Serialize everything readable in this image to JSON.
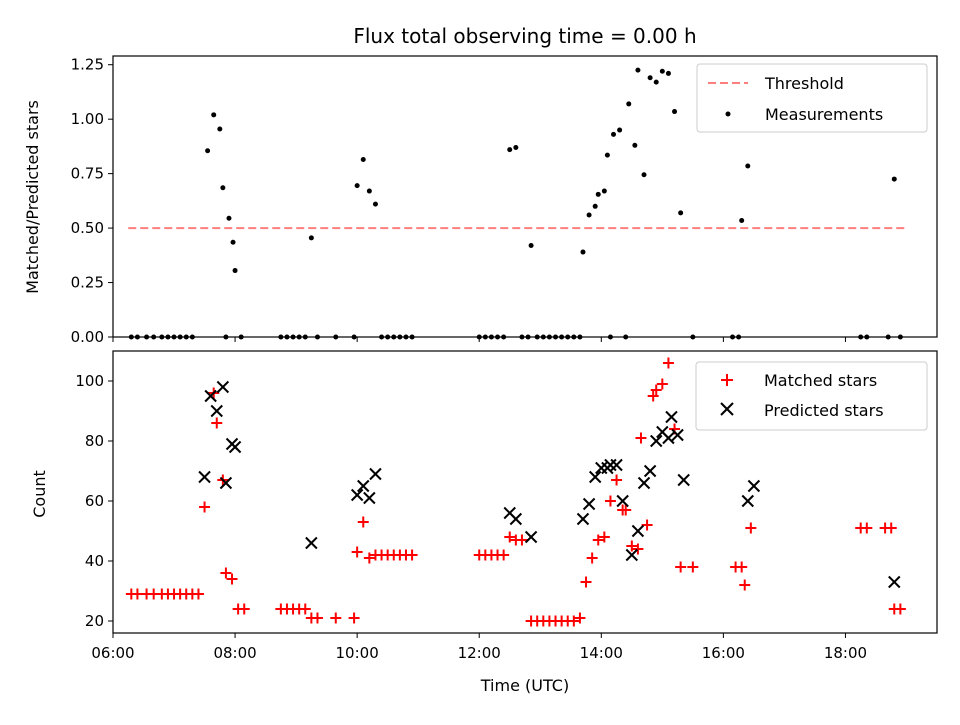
{
  "chart_data": [
    {
      "type": "scatter",
      "title": "Flux total observing time = 0.00 h",
      "xlabel": "",
      "ylabel": "Matched/Predicted stars",
      "xlim": [
        "06:00",
        "19:30"
      ],
      "ylim": [
        0,
        1.29
      ],
      "yticks": [
        0.0,
        0.25,
        0.5,
        0.75,
        1.0,
        1.25
      ],
      "ytick_labels": [
        "0.00",
        "0.25",
        "0.50",
        "0.75",
        "1.00",
        "1.25"
      ],
      "xticks": [
        "06:00",
        "08:00",
        "10:00",
        "12:00",
        "14:00",
        "16:00",
        "18:00"
      ],
      "legend_position": "top-right",
      "threshold": {
        "name": "Threshold",
        "value": 0.5,
        "x_start": "06:15",
        "x_end": "19:00",
        "color": "#ff7f7f",
        "style": "dashed"
      },
      "series": [
        {
          "name": "Measurements",
          "color": "#000000",
          "marker": "dot",
          "points": [
            [
              "06:18",
              0
            ],
            [
              "06:24",
              0
            ],
            [
              "06:33",
              0
            ],
            [
              "06:40",
              0
            ],
            [
              "06:48",
              0
            ],
            [
              "06:54",
              0
            ],
            [
              "07:00",
              0
            ],
            [
              "07:06",
              0
            ],
            [
              "07:12",
              0
            ],
            [
              "07:18",
              0
            ],
            [
              "07:33",
              0.855
            ],
            [
              "07:39",
              1.02
            ],
            [
              "07:45",
              0.955
            ],
            [
              "07:48",
              0.685
            ],
            [
              "07:51",
              0
            ],
            [
              "07:54",
              0.545
            ],
            [
              "07:58",
              0.435
            ],
            [
              "08:00",
              0.305
            ],
            [
              "08:06",
              0
            ],
            [
              "08:45",
              0
            ],
            [
              "08:51",
              0
            ],
            [
              "08:57",
              0
            ],
            [
              "09:03",
              0
            ],
            [
              "09:09",
              0
            ],
            [
              "09:15",
              0.455
            ],
            [
              "09:21",
              0
            ],
            [
              "09:39",
              0
            ],
            [
              "09:57",
              0
            ],
            [
              "10:00",
              0.695
            ],
            [
              "10:06",
              0.815
            ],
            [
              "10:12",
              0.67
            ],
            [
              "10:18",
              0.61
            ],
            [
              "10:24",
              0
            ],
            [
              "10:30",
              0
            ],
            [
              "10:36",
              0
            ],
            [
              "10:42",
              0
            ],
            [
              "10:48",
              0
            ],
            [
              "10:54",
              0
            ],
            [
              "12:00",
              0
            ],
            [
              "12:06",
              0
            ],
            [
              "12:12",
              0
            ],
            [
              "12:18",
              0
            ],
            [
              "12:24",
              0
            ],
            [
              "12:30",
              0.86
            ],
            [
              "12:36",
              0.87
            ],
            [
              "12:42",
              0
            ],
            [
              "12:48",
              0
            ],
            [
              "12:51",
              0.42
            ],
            [
              "12:57",
              0
            ],
            [
              "13:03",
              0
            ],
            [
              "13:09",
              0
            ],
            [
              "13:15",
              0
            ],
            [
              "13:21",
              0
            ],
            [
              "13:27",
              0
            ],
            [
              "13:33",
              0
            ],
            [
              "13:39",
              0
            ],
            [
              "13:42",
              0.39
            ],
            [
              "13:48",
              0.56
            ],
            [
              "13:54",
              0.6
            ],
            [
              "13:57",
              0.655
            ],
            [
              "14:03",
              0.67
            ],
            [
              "14:06",
              0.835
            ],
            [
              "14:09",
              0
            ],
            [
              "14:12",
              0.93
            ],
            [
              "14:18",
              0.95
            ],
            [
              "14:24",
              0
            ],
            [
              "14:27",
              1.07
            ],
            [
              "14:33",
              0.88
            ],
            [
              "14:36",
              1.225
            ],
            [
              "14:42",
              0.745
            ],
            [
              "14:48",
              1.19
            ],
            [
              "14:54",
              1.17
            ],
            [
              "15:00",
              1.22
            ],
            [
              "15:06",
              1.21
            ],
            [
              "15:12",
              1.035
            ],
            [
              "15:18",
              0.57
            ],
            [
              "15:30",
              0
            ],
            [
              "16:09",
              0
            ],
            [
              "16:15",
              0
            ],
            [
              "16:18",
              0.535
            ],
            [
              "16:24",
              0.785
            ],
            [
              "18:15",
              0
            ],
            [
              "18:21",
              0
            ],
            [
              "18:42",
              0
            ],
            [
              "18:48",
              0.725
            ],
            [
              "18:54",
              0
            ]
          ]
        }
      ]
    },
    {
      "type": "scatter",
      "title": "",
      "xlabel": "Time (UTC)",
      "ylabel": "Count",
      "xlim": [
        "06:00",
        "19:30"
      ],
      "ylim": [
        16,
        110
      ],
      "yticks": [
        20,
        40,
        60,
        80,
        100
      ],
      "xticks": [
        "06:00",
        "08:00",
        "10:00",
        "12:00",
        "14:00",
        "16:00",
        "18:00"
      ],
      "xtick_labels": [
        "06:00",
        "08:00",
        "10:00",
        "12:00",
        "14:00",
        "16:00",
        "18:00"
      ],
      "legend_position": "top-right",
      "series": [
        {
          "name": "Matched stars",
          "color": "#ff0000",
          "marker": "plus",
          "points": [
            [
              "06:18",
              29
            ],
            [
              "06:24",
              29
            ],
            [
              "06:33",
              29
            ],
            [
              "06:40",
              29
            ],
            [
              "06:48",
              29
            ],
            [
              "06:54",
              29
            ],
            [
              "07:00",
              29
            ],
            [
              "07:06",
              29
            ],
            [
              "07:12",
              29
            ],
            [
              "07:18",
              29
            ],
            [
              "07:24",
              29
            ],
            [
              "07:30",
              58
            ],
            [
              "07:39",
              96
            ],
            [
              "07:42",
              86
            ],
            [
              "07:48",
              67
            ],
            [
              "07:51",
              36
            ],
            [
              "07:57",
              34
            ],
            [
              "08:03",
              24
            ],
            [
              "08:09",
              24
            ],
            [
              "08:45",
              24
            ],
            [
              "08:51",
              24
            ],
            [
              "08:57",
              24
            ],
            [
              "09:03",
              24
            ],
            [
              "09:09",
              24
            ],
            [
              "09:15",
              21
            ],
            [
              "09:21",
              21
            ],
            [
              "09:39",
              21
            ],
            [
              "09:57",
              21
            ],
            [
              "10:00",
              43
            ],
            [
              "10:06",
              53
            ],
            [
              "10:12",
              41
            ],
            [
              "10:18",
              42
            ],
            [
              "10:24",
              42
            ],
            [
              "10:30",
              42
            ],
            [
              "10:36",
              42
            ],
            [
              "10:42",
              42
            ],
            [
              "10:48",
              42
            ],
            [
              "10:54",
              42
            ],
            [
              "12:00",
              42
            ],
            [
              "12:06",
              42
            ],
            [
              "12:12",
              42
            ],
            [
              "12:18",
              42
            ],
            [
              "12:24",
              42
            ],
            [
              "12:30",
              48
            ],
            [
              "12:36",
              47
            ],
            [
              "12:42",
              47
            ],
            [
              "12:51",
              20
            ],
            [
              "12:57",
              20
            ],
            [
              "13:03",
              20
            ],
            [
              "13:09",
              20
            ],
            [
              "13:15",
              20
            ],
            [
              "13:21",
              20
            ],
            [
              "13:27",
              20
            ],
            [
              "13:33",
              20
            ],
            [
              "13:39",
              21
            ],
            [
              "13:45",
              33
            ],
            [
              "13:51",
              41
            ],
            [
              "13:57",
              47
            ],
            [
              "14:03",
              48
            ],
            [
              "14:09",
              60
            ],
            [
              "14:15",
              67
            ],
            [
              "14:21",
              57
            ],
            [
              "14:24",
              57
            ],
            [
              "14:30",
              45
            ],
            [
              "14:36",
              44
            ],
            [
              "14:39",
              81
            ],
            [
              "14:45",
              52
            ],
            [
              "14:51",
              95
            ],
            [
              "14:54",
              97
            ],
            [
              "15:00",
              99
            ],
            [
              "15:06",
              106
            ],
            [
              "15:12",
              84
            ],
            [
              "15:18",
              38
            ],
            [
              "15:30",
              38
            ],
            [
              "16:12",
              38
            ],
            [
              "16:18",
              38
            ],
            [
              "16:21",
              32
            ],
            [
              "16:27",
              51
            ],
            [
              "18:15",
              51
            ],
            [
              "18:21",
              51
            ],
            [
              "18:39",
              51
            ],
            [
              "18:45",
              51
            ],
            [
              "18:48",
              24
            ],
            [
              "18:54",
              24
            ]
          ]
        },
        {
          "name": "Predicted stars",
          "color": "#000000",
          "marker": "x",
          "points": [
            [
              "07:30",
              68
            ],
            [
              "07:36",
              95
            ],
            [
              "07:42",
              90
            ],
            [
              "07:48",
              98
            ],
            [
              "07:51",
              66
            ],
            [
              "07:57",
              79
            ],
            [
              "08:00",
              78
            ],
            [
              "09:15",
              46
            ],
            [
              "10:00",
              62
            ],
            [
              "10:06",
              65
            ],
            [
              "10:12",
              61
            ],
            [
              "10:18",
              69
            ],
            [
              "12:30",
              56
            ],
            [
              "12:36",
              54
            ],
            [
              "12:51",
              48
            ],
            [
              "13:42",
              54
            ],
            [
              "13:48",
              59
            ],
            [
              "13:54",
              68
            ],
            [
              "14:00",
              71
            ],
            [
              "14:06",
              71
            ],
            [
              "14:09",
              72
            ],
            [
              "14:15",
              72
            ],
            [
              "14:21",
              60
            ],
            [
              "14:30",
              42
            ],
            [
              "14:36",
              50
            ],
            [
              "14:42",
              66
            ],
            [
              "14:48",
              70
            ],
            [
              "14:54",
              80
            ],
            [
              "15:00",
              83
            ],
            [
              "15:06",
              81
            ],
            [
              "15:09",
              88
            ],
            [
              "15:15",
              82
            ],
            [
              "15:21",
              67
            ],
            [
              "16:24",
              60
            ],
            [
              "16:30",
              65
            ],
            [
              "18:48",
              33
            ]
          ]
        }
      ]
    }
  ]
}
